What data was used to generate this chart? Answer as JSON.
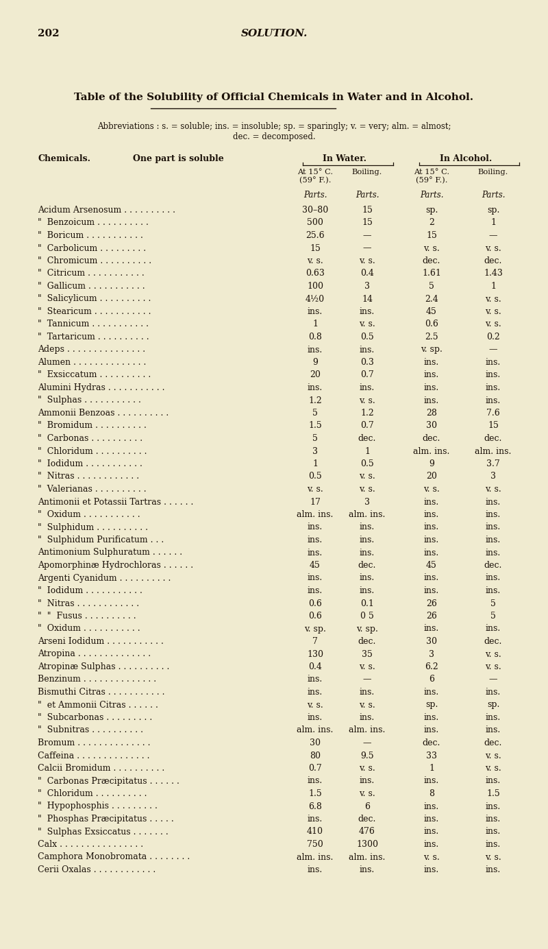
{
  "page_number": "202",
  "page_title": "SOLUTION.",
  "table_title": "Table of the Solubility of Official Chemicals in Water and in Alcohol.",
  "abbrev_line1": "Abbreviations : s. = soluble; ins. = insoluble; sp. = sparingly; v. = very; alm. = almost;",
  "abbrev_line2": "dec. = decomposed.",
  "bg_color": "#f0ebd0",
  "text_color": "#1a1008",
  "rows": [
    [
      "Acidum Arsenosum . . . . . . . . . .",
      "30–80",
      "15",
      "sp.",
      "sp."
    ],
    [
      "\"  Benzoicum . . . . . . . . . .",
      "500",
      "15",
      "2",
      "1"
    ],
    [
      "\"  Boricum . . . . . . . . . . .",
      "25.6",
      "—",
      "15",
      "—"
    ],
    [
      "\"  Carbolicum . . . . . . . . .",
      "15",
      "—",
      "v. s.",
      "v. s."
    ],
    [
      "\"  Chromicum . . . . . . . . . .",
      "v. s.",
      "v. s.",
      "dec.",
      "dec."
    ],
    [
      "\"  Citricum . . . . . . . . . . .",
      "0.63",
      "0.4",
      "1.61",
      "1.43"
    ],
    [
      "\"  Gallicum . . . . . . . . . . .",
      "100",
      "3",
      "5",
      "1"
    ],
    [
      "\"  Salicylicum . . . . . . . . . .",
      "4½0",
      "14",
      "2.4",
      "v. s."
    ],
    [
      "\"  Stearicum . . . . . . . . . . .",
      "ins.",
      "ins.",
      "45",
      "v. s."
    ],
    [
      "\"  Tannicum . . . . . . . . . . .",
      "1",
      "v. s.",
      "0.6",
      "v. s."
    ],
    [
      "\"  Tartaricum . . . . . . . . . .",
      "0.8",
      "0.5",
      "2.5",
      "0.2"
    ],
    [
      "Adeps . . . . . . . . . . . . . . .",
      "ins.",
      "ins.",
      "v. sp.",
      "—"
    ],
    [
      "Alumen . . . . . . . . . . . . . .",
      "9",
      "0.3",
      "ins.",
      "ins."
    ],
    [
      "\"  Exsiccatum . . . . . . . . . .",
      "20",
      "0.7",
      "ins.",
      "ins."
    ],
    [
      "Alumini Hydras . . . . . . . . . . .",
      "ins.",
      "ins.",
      "ins.",
      "ins."
    ],
    [
      "\"  Sulphas . . . . . . . . . . .",
      "1.2",
      "v. s.",
      "ins.",
      "ins."
    ],
    [
      "Ammonii Benzoas . . . . . . . . . .",
      "5",
      "1.2",
      "28",
      "7.6"
    ],
    [
      "\"  Bromidum . . . . . . . . . .",
      "1.5",
      "0.7",
      "30",
      "15"
    ],
    [
      "\"  Carbonas . . . . . . . . . .",
      "5",
      "dec.",
      "dec.",
      "dec."
    ],
    [
      "\"  Chloridum . . . . . . . . . .",
      "3",
      "1",
      "alm. ins.",
      "alm. ins."
    ],
    [
      "\"  Iodidum . . . . . . . . . . .",
      "1",
      "0.5",
      "9",
      "3.7"
    ],
    [
      "\"  Nitras . . . . . . . . . . . .",
      "0.5",
      "v. s.",
      "20",
      "3"
    ],
    [
      "\"  Valerianas . . . . . . . . . .",
      "v. s.",
      "v. s.",
      "v. s.",
      "v. s."
    ],
    [
      "Antimonii et Potassii Tartras . . . . . .",
      "17",
      "3",
      "ins.",
      "ins."
    ],
    [
      "\"  Oxidum . . . . . . . . . . .",
      "alm. ins.",
      "alm. ins.",
      "ins.",
      "ins."
    ],
    [
      "\"  Sulphidum . . . . . . . . . .",
      "ins.",
      "ins.",
      "ins.",
      "ins."
    ],
    [
      "\"  Sulphidum Purificatum . . .",
      "ins.",
      "ins.",
      "ins.",
      "ins."
    ],
    [
      "Antimonium Sulphuratum . . . . . .",
      "ins.",
      "ins.",
      "ins.",
      "ins."
    ],
    [
      "Apomorphinæ Hydrochloras . . . . . .",
      "45",
      "dec.",
      "45",
      "dec."
    ],
    [
      "Argenti Cyanidum . . . . . . . . . .",
      "ins.",
      "ins.",
      "ins.",
      "ins."
    ],
    [
      "\"  Iodidum . . . . . . . . . . .",
      "ins.",
      "ins.",
      "ins.",
      "ins."
    ],
    [
      "\"  Nitras . . . . . . . . . . . .",
      "0.6",
      "0.1",
      "26",
      "5"
    ],
    [
      "\"  \"  Fusus . . . . . . . . . .",
      "0.6",
      "0 5",
      "26",
      "5"
    ],
    [
      "\"  Oxidum . . . . . . . . . . .",
      "v. sp.",
      "v. sp.",
      "ins.",
      "ins."
    ],
    [
      "Arseni Iodidum . . . . . . . . . . .",
      "7",
      "dec.",
      "30",
      "dec."
    ],
    [
      "Atropina . . . . . . . . . . . . . .",
      "130",
      "35",
      "3",
      "v. s."
    ],
    [
      "Atropinæ Sulphas . . . . . . . . . .",
      "0.4",
      "v. s.",
      "6.2",
      "v. s."
    ],
    [
      "Benzinum . . . . . . . . . . . . . .",
      "ins.",
      "—",
      "6",
      "—"
    ],
    [
      "Bismuthi Citras . . . . . . . . . . .",
      "ins.",
      "ins.",
      "ins.",
      "ins."
    ],
    [
      "\"  et Ammonii Citras . . . . . .",
      "v. s.",
      "v. s.",
      "sp.",
      "sp."
    ],
    [
      "\"  Subcarbonas . . . . . . . . .",
      "ins.",
      "ins.",
      "ins.",
      "ins."
    ],
    [
      "\"  Subnitras . . . . . . . . . .",
      "alm. ins.",
      "alm. ins.",
      "ins.",
      "ins."
    ],
    [
      "Bromum . . . . . . . . . . . . . .",
      "30",
      "—",
      "dec.",
      "dec."
    ],
    [
      "Caffeina . . . . . . . . . . . . . .",
      "80",
      "9.5",
      "33",
      "v. s."
    ],
    [
      "Calcii Bromidum . . . . . . . . . .",
      "0.7",
      "v. s.",
      "1",
      "v. s."
    ],
    [
      "\"  Carbonas Præcipitatus . . . . . .",
      "ins.",
      "ins.",
      "ins.",
      "ins."
    ],
    [
      "\"  Chloridum . . . . . . . . . .",
      "1.5",
      "v. s.",
      "8",
      "1.5"
    ],
    [
      "\"  Hypophosphis . . . . . . . . .",
      "6.8",
      "6",
      "ins.",
      "ins."
    ],
    [
      "\"  Phosphas Præcipitatus . . . . .",
      "ins.",
      "dec.",
      "ins.",
      "ins."
    ],
    [
      "\"  Sulphas Exsiccatus . . . . . . .",
      "410",
      "476",
      "ins.",
      "ins."
    ],
    [
      "Calx . . . . . . . . . . . . . . . .",
      "750",
      "1300",
      "ins.",
      "ins."
    ],
    [
      "Camphora Monobromata . . . . . . . .",
      "alm. ins.",
      "alm. ins.",
      "v. s.",
      "v. s."
    ],
    [
      "Cerii Oxalas . . . . . . . . . . . .",
      "ins.",
      "ins.",
      "ins.",
      "ins."
    ]
  ]
}
